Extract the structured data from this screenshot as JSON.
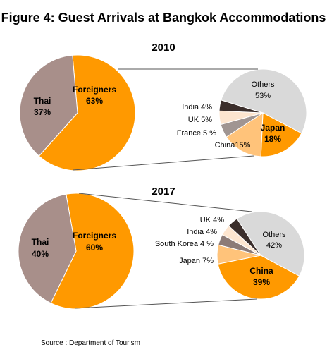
{
  "title": "Figure 4: Guest Arrivals at Bangkok Accommodations",
  "source": "Source : Department of Tourism",
  "colors": {
    "foreigners": "#FF9900",
    "thai": "#A88F8A",
    "others": "#D9D9D9",
    "china": "#FFC37A",
    "france": "#A09592",
    "uk": "#FDE5CF",
    "india": "#3B2E2B",
    "south_korea": "#8C7B77",
    "connector": "#555555"
  },
  "chart_data": [
    {
      "type": "pie",
      "title": "2010",
      "slices": [
        {
          "label": "Foreigners",
          "value": 63
        },
        {
          "label": "Thai",
          "value": 37
        }
      ],
      "text": {
        "foreigners": "Foreigners",
        "foreigners_pct": "63%",
        "thai": "Thai",
        "thai_pct": "37%"
      },
      "breakdown": {
        "type": "pie",
        "of": "Foreigners",
        "slices": [
          {
            "label": "Others",
            "value": 53
          },
          {
            "label": "Japan",
            "value": 18
          },
          {
            "label": "China",
            "value": 15
          },
          {
            "label": "France",
            "value": 5
          },
          {
            "label": "UK",
            "value": 5
          },
          {
            "label": "India",
            "value": 4
          }
        ],
        "text": {
          "others": "Others",
          "others_pct": "53%",
          "japan": "Japan",
          "japan_pct": "18%",
          "china": "China15%",
          "france": "France 5 %",
          "uk": "UK 5%",
          "india": "India 4%"
        }
      }
    },
    {
      "type": "pie",
      "title": "2017",
      "slices": [
        {
          "label": "Foreigners",
          "value": 60
        },
        {
          "label": "Thai",
          "value": 40
        }
      ],
      "text": {
        "foreigners": "Foreigners",
        "foreigners_pct": "60%",
        "thai": "Thai",
        "thai_pct": "40%"
      },
      "breakdown": {
        "type": "pie",
        "of": "Foreigners",
        "slices": [
          {
            "label": "Others",
            "value": 42
          },
          {
            "label": "China",
            "value": 39
          },
          {
            "label": "Japan",
            "value": 7
          },
          {
            "label": "South Korea",
            "value": 4
          },
          {
            "label": "India",
            "value": 4
          },
          {
            "label": "UK",
            "value": 4
          }
        ],
        "text": {
          "others": "Others",
          "others_pct": "42%",
          "china": "China",
          "china_pct": "39%",
          "japan": "Japan 7%",
          "south_korea": "South Korea 4 %",
          "india": "India 4%",
          "uk": "UK 4%"
        }
      }
    }
  ]
}
